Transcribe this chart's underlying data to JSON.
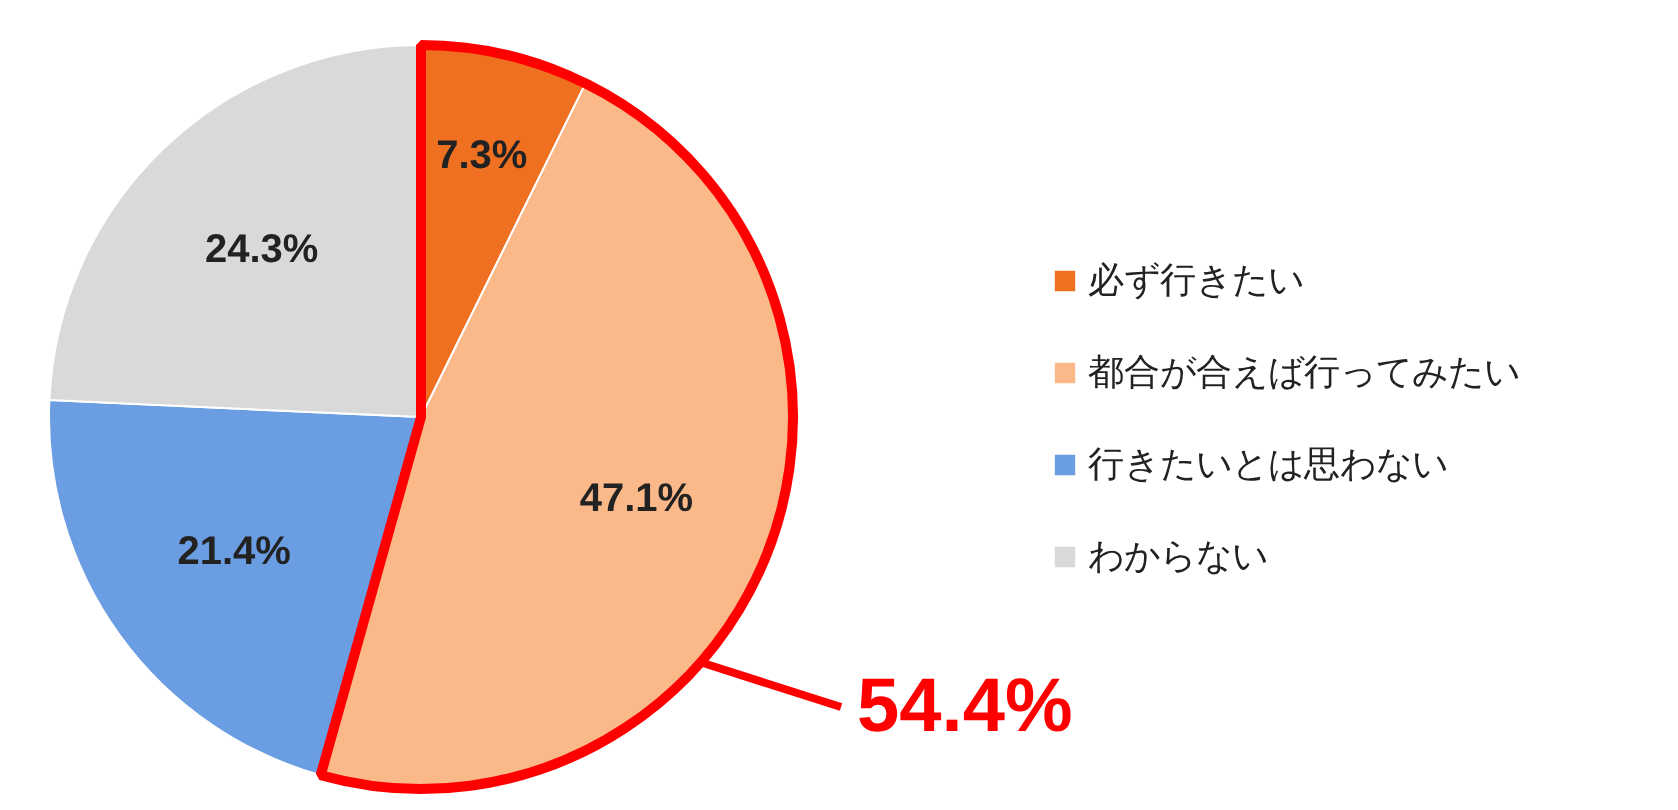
{
  "chart_data": {
    "type": "pie",
    "categories": [
      "必ず行きたい",
      "都合が合えば行ってみたい",
      "行きたいとは思わない",
      "わからない"
    ],
    "values": [
      7.3,
      47.1,
      21.4,
      24.3
    ],
    "colors": [
      "#f07021",
      "#fbb98a",
      "#6a9de2",
      "#d9d9d9"
    ],
    "value_labels": [
      "7.3%",
      "47.1%",
      "21.4%",
      "24.3%"
    ],
    "annotations": [
      "54.4%"
    ],
    "legend": "right"
  }
}
